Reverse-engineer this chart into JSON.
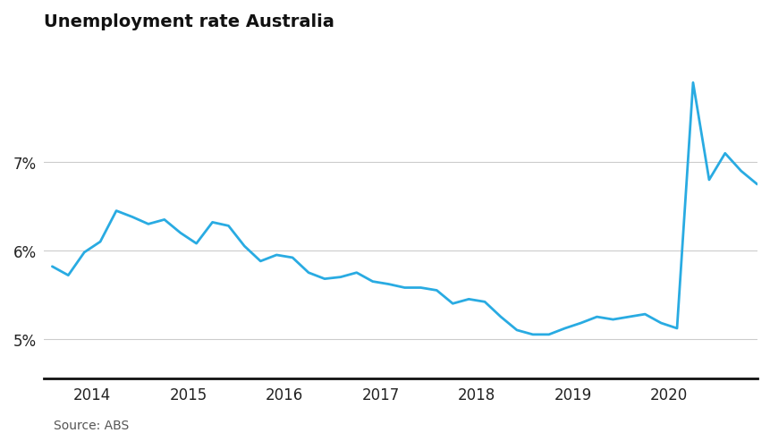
{
  "title": "Unemployment rate Australia",
  "source": "Source: ABS",
  "line_color": "#29abe2",
  "background_color": "#ffffff",
  "ylabel_color": "#222222",
  "grid_color": "#cccccc",
  "title_fontsize": 14,
  "axis_fontsize": 12,
  "source_fontsize": 10,
  "ylim": [
    4.55,
    8.4
  ],
  "yticks": [
    5,
    6,
    7
  ],
  "xlim": [
    2013.5,
    2020.92
  ],
  "x_data": [
    2013.583,
    2013.75,
    2013.917,
    2014.083,
    2014.25,
    2014.417,
    2014.583,
    2014.75,
    2014.917,
    2015.083,
    2015.25,
    2015.417,
    2015.583,
    2015.75,
    2015.917,
    2016.083,
    2016.25,
    2016.417,
    2016.583,
    2016.75,
    2016.917,
    2017.083,
    2017.25,
    2017.417,
    2017.583,
    2017.75,
    2017.917,
    2018.083,
    2018.25,
    2018.417,
    2018.583,
    2018.75,
    2018.917,
    2019.083,
    2019.25,
    2019.417,
    2019.583,
    2019.75,
    2019.917,
    2020.083,
    2020.25,
    2020.417,
    2020.583,
    2020.75,
    2020.917
  ],
  "y_data": [
    5.82,
    5.72,
    5.98,
    6.1,
    6.45,
    6.38,
    6.3,
    6.35,
    6.2,
    6.08,
    6.32,
    6.28,
    6.05,
    5.88,
    5.95,
    5.92,
    5.75,
    5.68,
    5.7,
    5.75,
    5.65,
    5.62,
    5.58,
    5.58,
    5.55,
    5.4,
    5.45,
    5.42,
    5.25,
    5.1,
    5.05,
    5.05,
    5.12,
    5.18,
    5.25,
    5.22,
    5.25,
    5.28,
    5.18,
    5.12,
    7.9,
    6.8,
    7.1,
    6.9,
    6.75
  ],
  "xticks": [
    2014.0,
    2015.0,
    2016.0,
    2017.0,
    2018.0,
    2019.0,
    2020.0
  ],
  "xticklabels": [
    "2014",
    "2015",
    "2016",
    "2017",
    "2018",
    "2019",
    "2020"
  ]
}
